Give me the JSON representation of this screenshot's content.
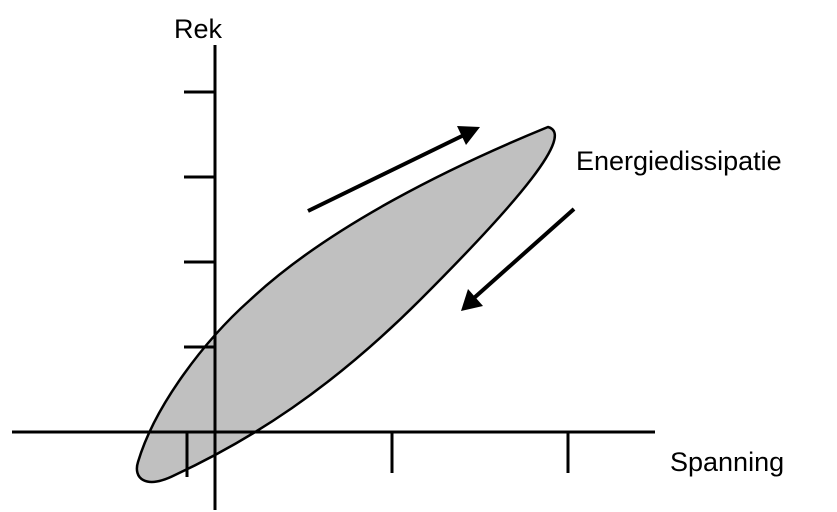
{
  "labels": {
    "y_axis": "Rek",
    "x_axis": "Spanning",
    "loop": "Energiedissipatie"
  },
  "colors": {
    "loop_fill": "#c0c0c0",
    "stroke": "#000000"
  }
}
